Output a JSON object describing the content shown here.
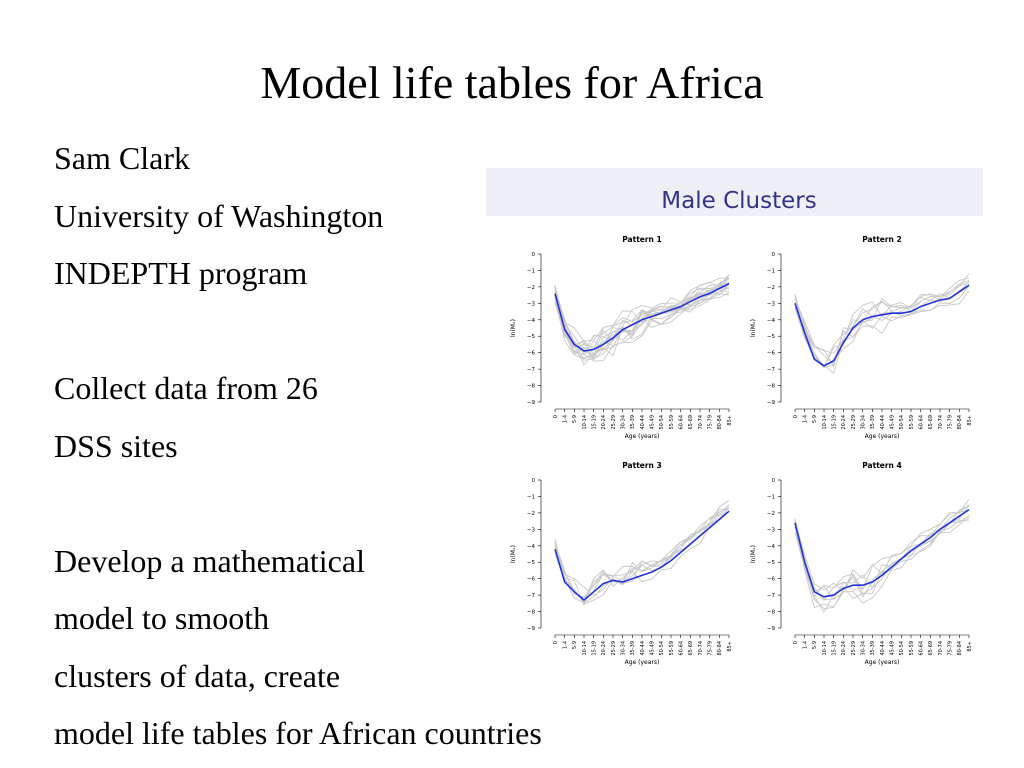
{
  "slide": {
    "title": "Model life tables for Africa",
    "lines": [
      "Sam Clark",
      "University of Washington",
      "INDEPTH program",
      "",
      "Collect data from 26",
      "DSS sites",
      "",
      "Develop a mathematical",
      "model to smooth",
      "clusters of data, create",
      "model life tables for African countries"
    ]
  },
  "figure": {
    "title": "Male Clusters",
    "colors": {
      "header_bg": "#eef0f6",
      "title": "#33338a",
      "mean_line": "#2233dd",
      "sample_lines": "#c8c8c8"
    }
  },
  "chart_data": [
    {
      "type": "line",
      "title": "Pattern 1",
      "xlabel": "Age (years)",
      "ylabel": "ln(Mₓ)",
      "categories": [
        "0",
        "1-4",
        "5-9",
        "10-14",
        "15-19",
        "20-24",
        "25-29",
        "30-34",
        "35-39",
        "40-44",
        "45-49",
        "50-54",
        "55-59",
        "60-64",
        "65-69",
        "70-74",
        "75-79",
        "80-84",
        "85+"
      ],
      "yticks": [
        0,
        -1,
        -2,
        -3,
        -4,
        -5,
        -6,
        -7,
        -8,
        -9
      ],
      "ylim": [
        -9,
        0
      ],
      "series": [
        {
          "values": [
            -2.4,
            -4.6,
            -5.5,
            -5.9,
            -5.8,
            -5.5,
            -5.1,
            -4.6,
            -4.3,
            -4.0,
            -3.8,
            -3.6,
            -3.4,
            -3.2,
            -2.9,
            -2.6,
            -2.4,
            -2.1,
            -1.8
          ]
        }
      ]
    },
    {
      "type": "line",
      "title": "Pattern 2",
      "xlabel": "Age (years)",
      "ylabel": "ln(Mₓ)",
      "categories": [
        "0",
        "1-4",
        "5-9",
        "10-14",
        "15-19",
        "20-24",
        "25-29",
        "30-34",
        "35-39",
        "40-44",
        "45-49",
        "50-54",
        "55-59",
        "60-64",
        "65-69",
        "70-74",
        "75-79",
        "80-84",
        "85+"
      ],
      "yticks": [
        0,
        -1,
        -2,
        -3,
        -4,
        -5,
        -6,
        -7,
        -8,
        -9
      ],
      "ylim": [
        -9,
        0
      ],
      "series": [
        {
          "values": [
            -3.0,
            -4.8,
            -6.4,
            -6.8,
            -6.5,
            -5.4,
            -4.5,
            -4.0,
            -3.8,
            -3.7,
            -3.6,
            -3.6,
            -3.5,
            -3.2,
            -3.0,
            -2.8,
            -2.7,
            -2.3,
            -1.9
          ]
        }
      ]
    },
    {
      "type": "line",
      "title": "Pattern 3",
      "xlabel": "Age (years)",
      "ylabel": "ln(Mₓ)",
      "categories": [
        "0",
        "1-4",
        "5-9",
        "10-14",
        "15-19",
        "20-24",
        "25-29",
        "30-34",
        "35-39",
        "40-44",
        "45-49",
        "50-54",
        "55-59",
        "60-64",
        "65-69",
        "70-74",
        "75-79",
        "80-84",
        "85+"
      ],
      "yticks": [
        0,
        -1,
        -2,
        -3,
        -4,
        -5,
        -6,
        -7,
        -8,
        -9
      ],
      "ylim": [
        -9,
        0
      ],
      "series": [
        {
          "values": [
            -4.2,
            -6.2,
            -6.8,
            -7.3,
            -6.8,
            -6.3,
            -6.1,
            -6.2,
            -6.0,
            -5.8,
            -5.6,
            -5.3,
            -4.9,
            -4.4,
            -3.9,
            -3.4,
            -2.9,
            -2.4,
            -1.9
          ]
        }
      ]
    },
    {
      "type": "line",
      "title": "Pattern 4",
      "xlabel": "Age (years)",
      "ylabel": "ln(Mₓ)",
      "categories": [
        "0",
        "1-4",
        "5-9",
        "10-14",
        "15-19",
        "20-24",
        "25-29",
        "30-34",
        "35-39",
        "40-44",
        "45-49",
        "50-54",
        "55-59",
        "60-64",
        "65-69",
        "70-74",
        "75-79",
        "80-84",
        "85+"
      ],
      "yticks": [
        0,
        -1,
        -2,
        -3,
        -4,
        -5,
        -6,
        -7,
        -8,
        -9
      ],
      "ylim": [
        -9,
        0
      ],
      "series": [
        {
          "values": [
            -2.6,
            -5.0,
            -6.8,
            -7.1,
            -7.0,
            -6.6,
            -6.4,
            -6.4,
            -6.2,
            -5.8,
            -5.3,
            -4.8,
            -4.3,
            -3.9,
            -3.5,
            -3.0,
            -2.6,
            -2.2,
            -1.8
          ]
        }
      ]
    }
  ]
}
